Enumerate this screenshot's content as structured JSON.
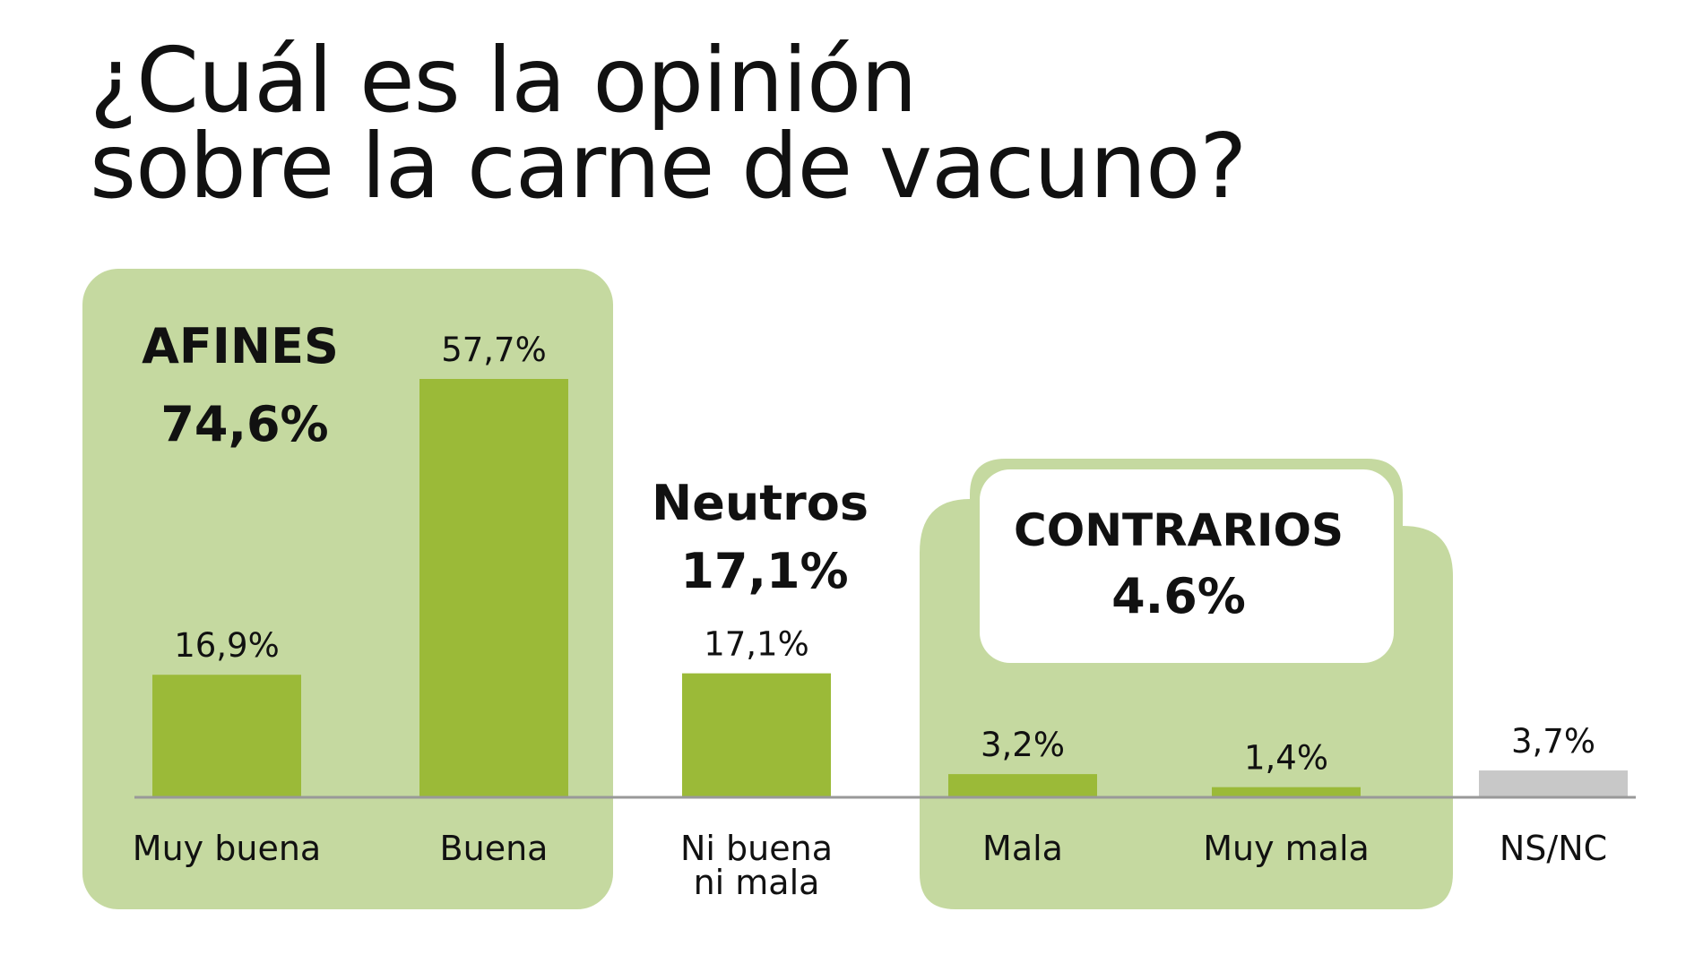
{
  "chart_data": {
    "type": "bar",
    "title_lines": [
      "¿Cuál es la opinión",
      "sobre la carne de vacuno?"
    ],
    "categories": [
      [
        "Muy buena"
      ],
      [
        "Buena"
      ],
      [
        "Ni buena",
        "ni mala"
      ],
      [
        "Mala"
      ],
      [
        "Muy mala"
      ],
      [
        "NS/NC"
      ]
    ],
    "values": [
      16.9,
      57.7,
      17.1,
      3.2,
      1.4,
      3.7
    ],
    "value_labels": [
      "16,9%",
      "57,7%",
      "17,1%",
      "3,2%",
      "1,4%",
      "3,7%"
    ],
    "ylim": [
      0,
      60
    ],
    "grid": false,
    "bar_colors": [
      "#9bba38",
      "#9bba38",
      "#9bba38",
      "#9bba38",
      "#9bba38",
      "#c8c8c8"
    ],
    "group_fill": "#c5d9a0",
    "axis_color": "#999999",
    "groups": [
      {
        "label": "AFINES",
        "value_label": "74,6%"
      },
      {
        "label": "Neutros",
        "value_label": "17,1%"
      },
      {
        "label": "CONTRARIOS",
        "value_label": "4.6%"
      }
    ]
  }
}
